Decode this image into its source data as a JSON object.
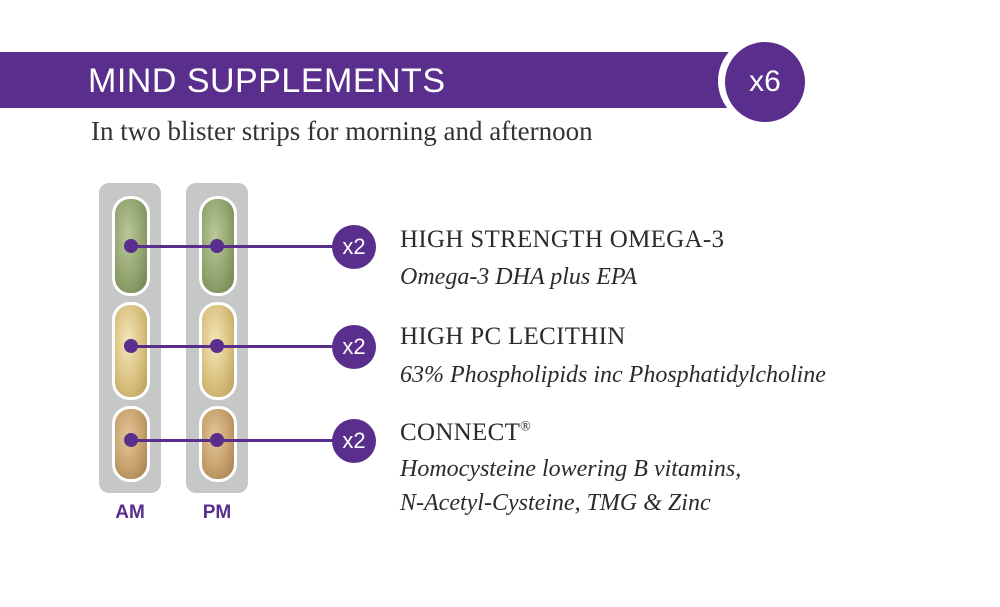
{
  "header": {
    "title": "MIND SUPPLEMENTS",
    "quantity_badge": "x6"
  },
  "subtitle": "In two blister strips for morning and afternoon",
  "strips": [
    {
      "label": "AM"
    },
    {
      "label": "PM"
    }
  ],
  "items": [
    {
      "count": "x2",
      "name": "HIGH STRENGTH OMEGA-3",
      "name_mark": "",
      "description_lines": [
        "Omega-3 DHA plus EPA"
      ]
    },
    {
      "count": "x2",
      "name": "HIGH PC LECITHIN",
      "name_mark": "",
      "description_lines": [
        "63% Phospholipids inc Phosphatidylcholine"
      ]
    },
    {
      "count": "x2",
      "name": "CONNECT",
      "name_mark": "®",
      "description_lines": [
        "Homocysteine lowering B vitamins,",
        "N-Acetyl-Cysteine, TMG & Zinc"
      ]
    }
  ],
  "colors": {
    "brand_purple": "#5a2e8c",
    "strip_gray": "#c6c8c7",
    "omega_capsule": "#8ea06a",
    "lecithin_capsule": "#d8c07e",
    "connect_capsule": "#c6a06b"
  }
}
